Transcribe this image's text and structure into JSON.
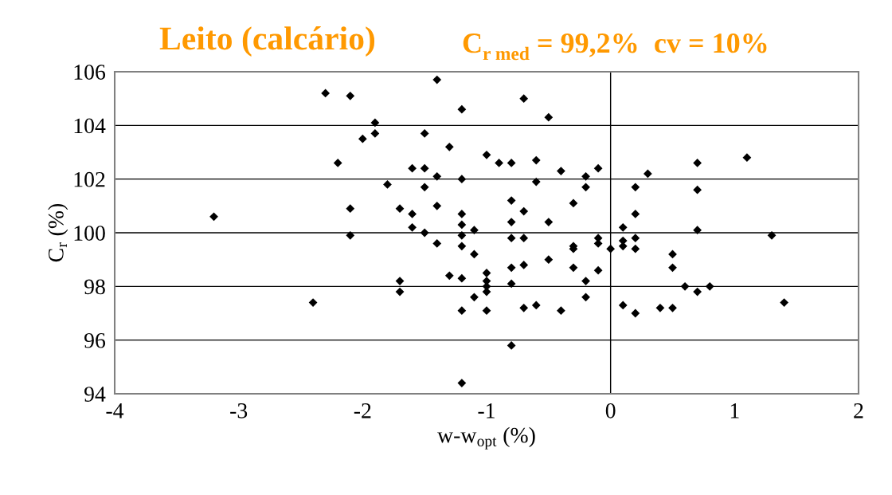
{
  "chart_data": {
    "type": "scatter",
    "title": "Leito (calcário)",
    "subtitle": "C$_{r med}$ = 99,2%  cv = 10%",
    "xlabel": "w-w$_{opt}$ (%)",
    "ylabel": "C$_{r}$ (%)",
    "xlim": [
      -4,
      2
    ],
    "xticks": [
      -4,
      -3,
      -2,
      -1,
      0,
      1,
      2
    ],
    "ylim": [
      94,
      106
    ],
    "yticks": [
      94,
      96,
      98,
      100,
      102,
      104,
      106
    ],
    "grid": "y",
    "marker": "diamond",
    "ref_lines": [
      {
        "axis": "x",
        "value": 0,
        "color": "#000000"
      }
    ],
    "series": [
      {
        "color": "#000000",
        "x": [
          -3.2,
          -2.4,
          -2.3,
          -2.1,
          -2.1,
          -2.1,
          -2.2,
          -2.0,
          -1.9,
          -1.9,
          -1.8,
          -1.7,
          -1.7,
          -1.7,
          -1.6,
          -1.6,
          -1.6,
          -1.5,
          -1.5,
          -1.5,
          -1.5,
          -1.4,
          -1.4,
          -1.4,
          -1.4,
          -1.3,
          -1.3,
          -1.2,
          -1.2,
          -1.2,
          -1.2,
          -1.2,
          -1.2,
          -1.2,
          -1.2,
          -1.2,
          -1.1,
          -1.1,
          -1.1,
          -1.0,
          -1.0,
          -1.0,
          -1.0,
          -1.0,
          -1.0,
          -0.9,
          -0.8,
          -0.8,
          -0.8,
          -0.8,
          -0.8,
          -0.8,
          -0.8,
          -0.7,
          -0.7,
          -0.7,
          -0.7,
          -0.7,
          -0.6,
          -0.6,
          -0.6,
          -0.5,
          -0.5,
          -0.5,
          -0.4,
          -0.4,
          -0.3,
          -0.3,
          -0.3,
          -0.3,
          -0.2,
          -0.2,
          -0.2,
          -0.2,
          -0.1,
          -0.1,
          -0.1,
          -0.1,
          0.0,
          0.1,
          0.1,
          0.1,
          0.1,
          0.2,
          0.2,
          0.2,
          0.2,
          0.2,
          0.3,
          0.4,
          0.5,
          0.5,
          0.5,
          0.6,
          0.7,
          0.7,
          0.7,
          0.7,
          0.8,
          1.1,
          1.3,
          1.4
        ],
        "values": [
          100.6,
          97.4,
          105.2,
          105.1,
          100.9,
          99.9,
          102.6,
          103.5,
          104.1,
          103.7,
          101.8,
          100.9,
          98.2,
          97.8,
          102.4,
          100.7,
          100.2,
          103.7,
          102.4,
          101.7,
          100.0,
          105.7,
          102.1,
          101.0,
          99.6,
          103.2,
          98.4,
          104.6,
          102.0,
          100.7,
          100.3,
          99.9,
          99.5,
          98.3,
          97.1,
          94.4,
          100.1,
          99.2,
          97.6,
          102.9,
          98.5,
          98.2,
          98.0,
          97.8,
          97.1,
          102.6,
          102.6,
          101.2,
          100.4,
          99.8,
          98.7,
          98.1,
          95.8,
          105.0,
          100.8,
          99.8,
          98.8,
          97.2,
          102.7,
          101.9,
          97.3,
          104.3,
          100.4,
          99.0,
          102.3,
          97.1,
          101.1,
          99.5,
          99.4,
          98.7,
          102.1,
          101.7,
          98.2,
          97.6,
          102.4,
          99.8,
          99.6,
          98.6,
          99.4,
          100.2,
          99.7,
          99.5,
          97.3,
          101.7,
          100.7,
          99.8,
          99.4,
          97.0,
          102.2,
          97.2,
          99.2,
          98.7,
          97.2,
          98.0,
          102.6,
          101.6,
          100.1,
          97.8,
          98.0,
          102.8,
          99.9,
          97.4
        ]
      }
    ]
  }
}
